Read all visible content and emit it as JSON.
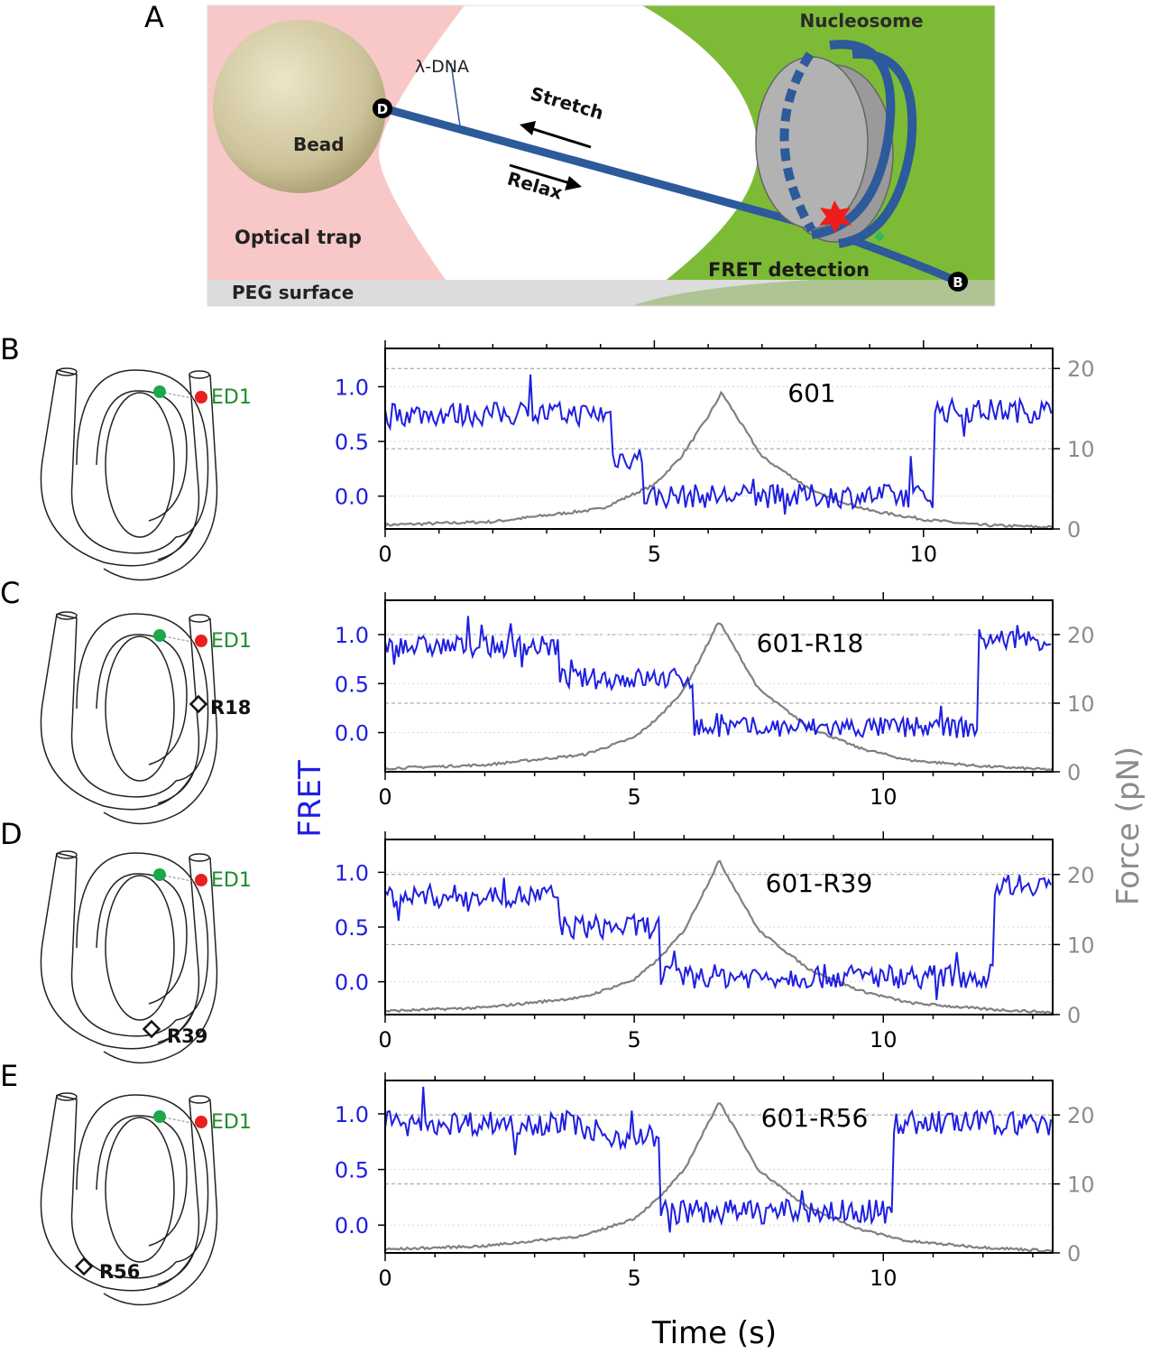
{
  "panel_letters": [
    "A",
    "B",
    "C",
    "D",
    "E"
  ],
  "schematic": {
    "labels": {
      "nucleosome": "Nucleosome",
      "lambda_dna": "λ-DNA",
      "stretch": "Stretch",
      "relax": "Relax",
      "bead": "Bead",
      "optical_trap": "Optical trap",
      "fret_detection": "FRET detection",
      "peg_surface": "PEG surface",
      "d_marker": "D",
      "b_marker": "B"
    },
    "colors": {
      "trap": "#f8c8c8",
      "detection": "#76b52e",
      "dna": "#2d5a9a",
      "bead": "#cdc39a",
      "peg": "#dcdcdc"
    }
  },
  "icons": {
    "acceptor": "red-dot-icon",
    "donor": "green-dot-icon",
    "site": "diamond-marker-icon"
  },
  "diagrams": [
    {
      "ed_label": "ED1",
      "site_label": ""
    },
    {
      "ed_label": "ED1",
      "site_label": "R18"
    },
    {
      "ed_label": "ED1",
      "site_label": "R39"
    },
    {
      "ed_label": "ED1",
      "site_label": "R56"
    }
  ],
  "shared_axes": {
    "xlabel": "Time (s)",
    "y_left_label": "FRET",
    "y_right_label": "Force (pN)"
  },
  "chart_data": [
    {
      "type": "line",
      "title": "601",
      "xlim": [
        0,
        12.4
      ],
      "xticks": [
        0,
        5,
        10
      ],
      "y_left_lim": [
        -0.3,
        1.35
      ],
      "y_left_ticks": [
        "0.0",
        "0.5",
        "1.0"
      ],
      "y_right_lim": [
        0,
        22.5
      ],
      "y_right_ticks": [
        "0",
        "10",
        "20"
      ],
      "grid": "dashed",
      "series": [
        {
          "axis": "left",
          "color": "#1f1fe0",
          "x_range": [
            0,
            12.4
          ],
          "levels": [
            [
              0,
              4.2,
              0.75
            ],
            [
              4.2,
              4.8,
              0.35
            ],
            [
              4.8,
              10.2,
              0.0
            ],
            [
              10.2,
              12.4,
              0.78
            ]
          ]
        },
        {
          "axis": "right",
          "color": "#808080",
          "x": [
            0,
            2,
            4,
            5,
            5.5,
            6,
            6.25,
            7,
            8,
            9,
            10,
            11,
            12.4
          ],
          "y": [
            0.5,
            0.9,
            2.5,
            5.5,
            9,
            14,
            17,
            9,
            4.5,
            2.3,
            1.2,
            0.5,
            0.2
          ]
        }
      ]
    },
    {
      "type": "line",
      "title": "601-R18",
      "xlim": [
        0,
        13.4
      ],
      "xticks": [
        0,
        5,
        10
      ],
      "y_left_lim": [
        -0.4,
        1.35
      ],
      "y_left_ticks": [
        "0.0",
        "0.5",
        "1.0"
      ],
      "y_right_lim": [
        0,
        25
      ],
      "y_right_ticks": [
        "0",
        "10",
        "20"
      ],
      "grid": "dashed",
      "series": [
        {
          "axis": "left",
          "color": "#1f1fe0",
          "x_range": [
            0,
            13.4
          ],
          "levels": [
            [
              0,
              3.5,
              0.88
            ],
            [
              3.5,
              6.2,
              0.55
            ],
            [
              6.2,
              11.9,
              0.05
            ],
            [
              11.9,
              13.4,
              0.95
            ]
          ]
        },
        {
          "axis": "right",
          "color": "#808080",
          "x": [
            0,
            2,
            4,
            5,
            5.5,
            6,
            6.5,
            6.7,
            7.5,
            8.5,
            9.5,
            10.5,
            12,
            13.4
          ],
          "y": [
            0.5,
            1,
            2.5,
            5,
            8,
            12,
            19,
            22,
            12,
            6.5,
            3.5,
            1.7,
            0.8,
            0.3
          ]
        }
      ]
    },
    {
      "type": "line",
      "title": "601-R39",
      "xlim": [
        0,
        13.4
      ],
      "xticks": [
        0,
        5,
        10
      ],
      "y_left_lim": [
        -0.3,
        1.3
      ],
      "y_left_ticks": [
        "0.0",
        "0.5",
        "1.0"
      ],
      "y_right_lim": [
        0,
        25
      ],
      "y_right_ticks": [
        "0",
        "10",
        "20"
      ],
      "grid": "dashed",
      "series": [
        {
          "axis": "left",
          "color": "#1f1fe0",
          "x_range": [
            0,
            13.4
          ],
          "levels": [
            [
              0,
              3.5,
              0.78
            ],
            [
              3.5,
              5.5,
              0.5
            ],
            [
              5.5,
              12.2,
              0.05
            ],
            [
              12.2,
              13.4,
              0.9
            ]
          ]
        },
        {
          "axis": "right",
          "color": "#808080",
          "x": [
            0,
            2,
            4,
            5,
            5.5,
            6,
            6.5,
            6.7,
            7.5,
            8.5,
            9.5,
            10.5,
            12,
            13.4
          ],
          "y": [
            0.5,
            1,
            2.5,
            5,
            8,
            12,
            19,
            22,
            12,
            6.5,
            3.5,
            1.7,
            0.8,
            0.3
          ]
        }
      ]
    },
    {
      "type": "line",
      "title": "601-R56",
      "xlim": [
        0,
        13.4
      ],
      "xticks": [
        0,
        5,
        10
      ],
      "y_left_lim": [
        -0.25,
        1.3
      ],
      "y_left_ticks": [
        "0.0",
        "0.5",
        "1.0"
      ],
      "y_right_lim": [
        0,
        25
      ],
      "y_right_ticks": [
        "0",
        "10",
        "20"
      ],
      "grid": "dashed",
      "series": [
        {
          "axis": "left",
          "color": "#1f1fe0",
          "x_range": [
            0,
            13.4
          ],
          "levels": [
            [
              0,
              4.0,
              0.92
            ],
            [
              4.0,
              5.5,
              0.8
            ],
            [
              5.5,
              10.2,
              0.12
            ],
            [
              10.2,
              13.4,
              0.92
            ]
          ]
        },
        {
          "axis": "right",
          "color": "#808080",
          "x": [
            0,
            2,
            4,
            5,
            5.5,
            6,
            6.5,
            6.7,
            7.5,
            8.5,
            9.5,
            10.5,
            12,
            13.4
          ],
          "y": [
            0.5,
            1,
            2.5,
            5,
            8,
            12,
            19,
            22,
            12,
            6.5,
            3.5,
            1.7,
            0.8,
            0.3
          ]
        }
      ]
    }
  ]
}
